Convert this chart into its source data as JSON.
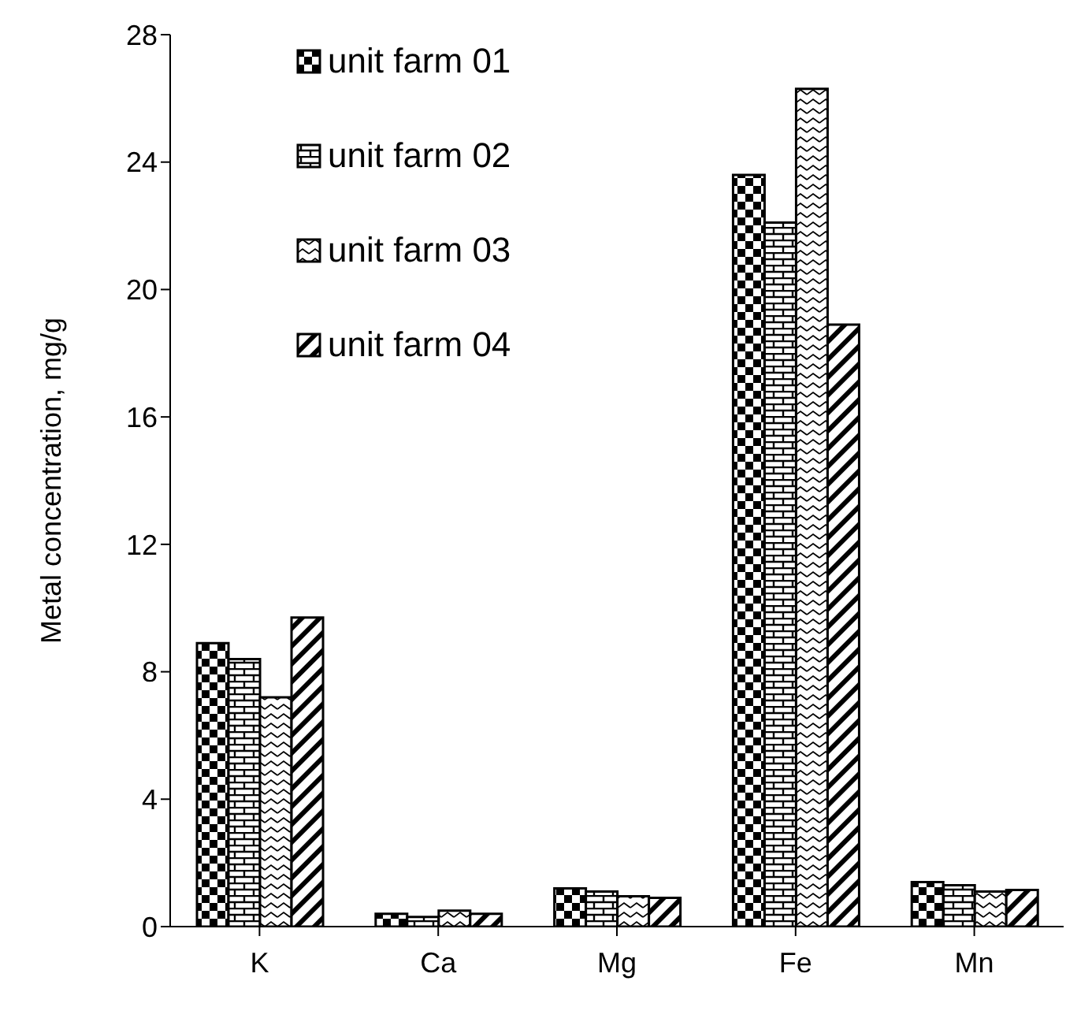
{
  "chart_data": {
    "type": "bar",
    "ylabel": "Metal concentration, mg/g",
    "categories": [
      "K",
      "Ca",
      "Mg",
      "Fe",
      "Mn"
    ],
    "series": [
      {
        "name": "unit farm 01",
        "color": "#000000",
        "values": [
          8.9,
          0.4,
          1.2,
          23.6,
          1.4
        ]
      },
      {
        "name": "unit farm 02",
        "color": "#000000",
        "values": [
          8.4,
          0.3,
          1.1,
          22.1,
          1.3
        ]
      },
      {
        "name": "unit farm 03",
        "color": "#000000",
        "values": [
          7.2,
          0.5,
          0.95,
          26.3,
          1.1
        ]
      },
      {
        "name": "unit farm 04",
        "color": "#000000",
        "values": [
          9.7,
          0.4,
          0.9,
          18.9,
          1.15
        ]
      }
    ],
    "ylim": [
      0,
      28
    ],
    "yticks": [
      0,
      4,
      8,
      12,
      16,
      20,
      24,
      28
    ],
    "grid": false,
    "legend": "top"
  }
}
